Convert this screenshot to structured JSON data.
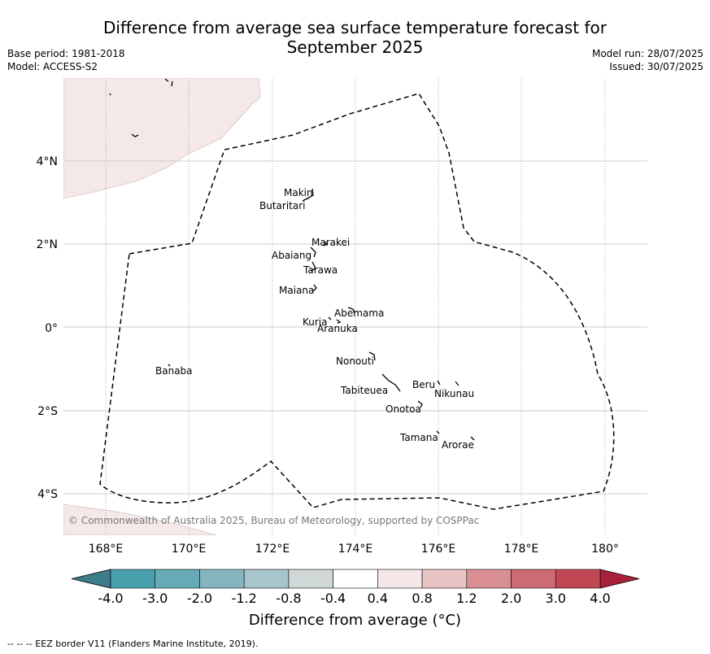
{
  "title": "Difference from average sea surface temperature forecast for September 2025",
  "title_lines": [
    "Difference from average sea surface temperature forecast for",
    "September 2025"
  ],
  "base_period": "Base period: 1981-2018",
  "model": "Model: ACCESS-S2",
  "model_run": "Model run: 28/07/2025",
  "issued": "Issued: 30/07/2025",
  "copyright": "© Commonwealth of Australia 2025, Bureau of Meteorology, supported by COSPPac",
  "footer": "--  --  -- EEZ border V11 (Flanders Marine Institute, 2019).",
  "lon_ticks": [
    "168°E",
    "170°E",
    "172°E",
    "174°E",
    "176°E",
    "178°E",
    "180°"
  ],
  "lat_ticks": [
    "4°N",
    "2°N",
    "0°",
    "2°S",
    "4°S"
  ],
  "islands": [
    "Makin",
    "Butaritari",
    "Marakei",
    "Abaiang",
    "Tarawa",
    "Maiana",
    "Abemama",
    "Kuria",
    "Aranuka",
    "Nonouti",
    "Banaba",
    "Tabiteuea",
    "Beru",
    "Nikunau",
    "Onotoa",
    "Tamana",
    "Arorae"
  ],
  "colorbar": {
    "label": "Difference from average (°C)",
    "ticks": [
      "-4.0",
      "-3.0",
      "-2.0",
      "-1.2",
      "-0.8",
      "-0.4",
      "0.4",
      "0.8",
      "1.2",
      "2.0",
      "3.0",
      "4.0"
    ],
    "colors": [
      "#48a0ad",
      "#68aab5",
      "#86b5bf",
      "#a7c6cb",
      "#d0d7d7",
      "#ffffff",
      "#f5e7e7",
      "#e8c5c4",
      "#d98e93",
      "#cc6b74",
      "#c14755"
    ],
    "under_color": "#3c7d89",
    "over_color": "#a8213a"
  },
  "colors": {
    "land_fill": "#f5e8e8",
    "grid": "#cccccc",
    "eez": "#000000",
    "copyright_text": "#777777"
  }
}
